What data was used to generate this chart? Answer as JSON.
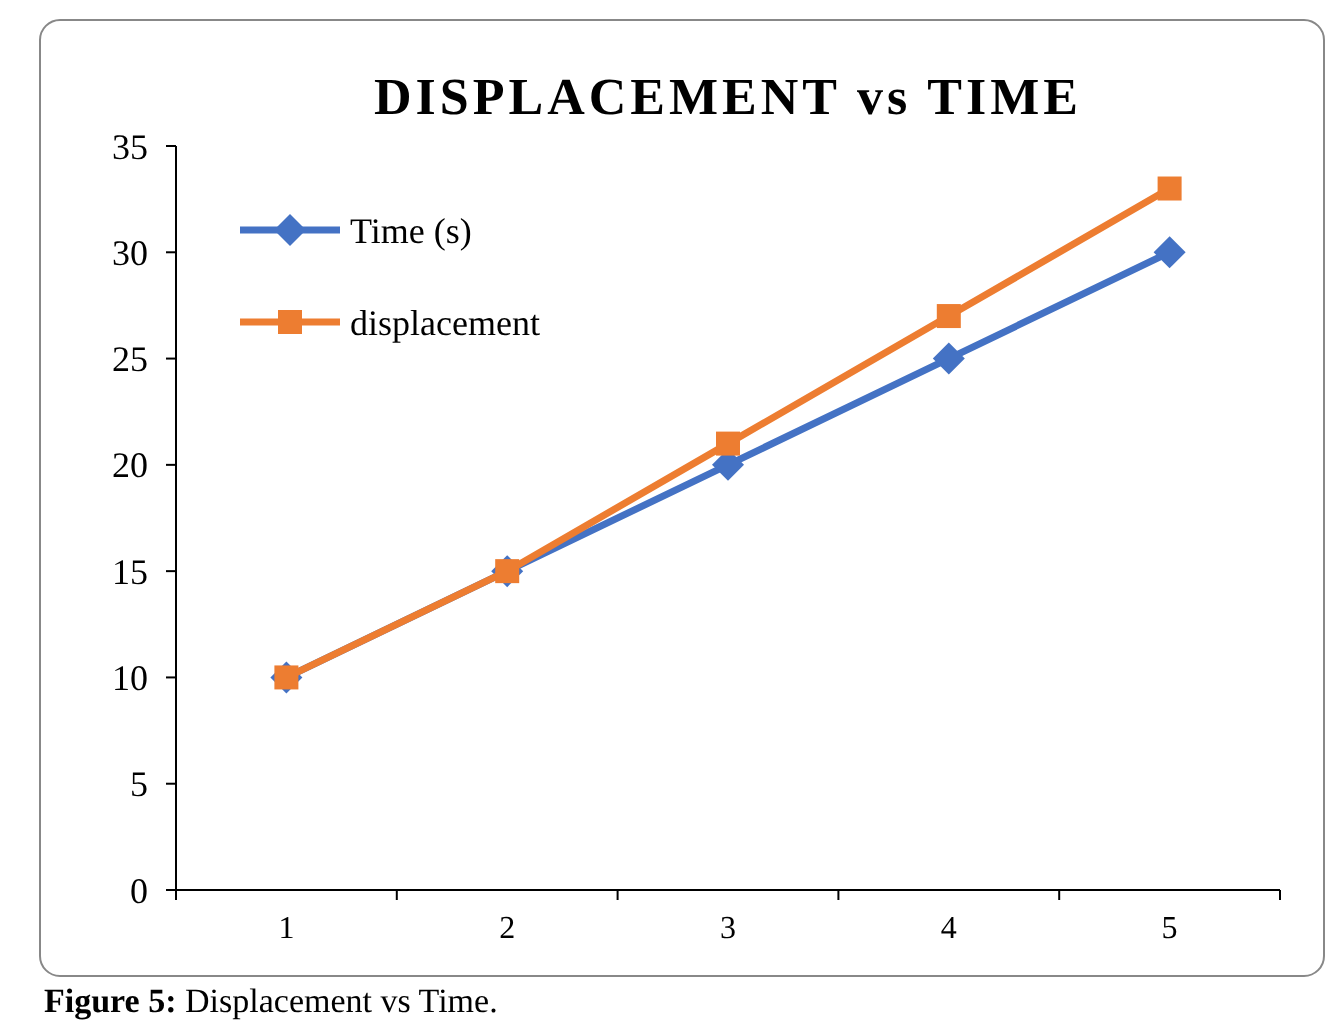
{
  "chart_data": {
    "type": "line",
    "title": "DISPLACEMENT vs TIME",
    "categories": [
      "1",
      "2",
      "3",
      "4",
      "5"
    ],
    "series": [
      {
        "name": "Time (s)",
        "color": "#4472c4",
        "marker": "diamond",
        "values": [
          10,
          15,
          20,
          25,
          30
        ]
      },
      {
        "name": "displacement",
        "color": "#ed7d31",
        "marker": "square",
        "values": [
          10,
          15,
          21,
          27,
          33
        ]
      }
    ],
    "ylim": [
      0,
      35
    ],
    "yticks": [
      0,
      5,
      10,
      15,
      20,
      25,
      30,
      35
    ],
    "grid": false,
    "legend": "top left",
    "line_style": "solid",
    "annotations": [
      "Figure 5: Displacement vs Time."
    ]
  }
}
